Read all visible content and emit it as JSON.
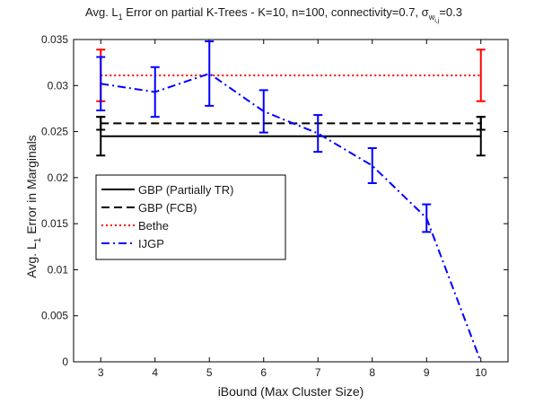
{
  "chart_data": {
    "type": "line",
    "title": "Avg. L",
    "title_sub": "1",
    "title_rest": " Error on partial K-Trees - K=10, n=100, connectivity=0.7, σ",
    "title_sigma_sub": "w",
    "title_sigma_subsub": "i,j",
    "title_tail": "=0.3",
    "xlabel": "iBound (Max Cluster Size)",
    "ylabel_pre": "Avg. L",
    "ylabel_sub": "1",
    "ylabel_post": " Error in Marginals",
    "xlim": [
      2.5,
      10.5
    ],
    "ylim": [
      0,
      0.035
    ],
    "xticks": [
      3,
      4,
      5,
      6,
      7,
      8,
      9,
      10
    ],
    "xtick_labels": [
      "3",
      "4",
      "5",
      "6",
      "7",
      "8",
      "9",
      "10"
    ],
    "yticks": [
      0,
      0.005,
      0.01,
      0.015,
      0.02,
      0.025,
      0.03,
      0.035
    ],
    "ytick_labels": [
      "0",
      "0.005",
      "0.01",
      "0.015",
      "0.02",
      "0.025",
      "0.03",
      "0.035"
    ],
    "grid": false,
    "legend_position": "left-middle",
    "series": [
      {
        "name": "GBP (Partially TR)",
        "color": "#000000",
        "style": "solid",
        "x": [
          3,
          10
        ],
        "y": [
          0.0245,
          0.0245
        ],
        "err": [
          0.0021,
          0.0021
        ]
      },
      {
        "name": "GBP (FCB)",
        "color": "#000000",
        "style": "dashed",
        "x": [
          3,
          10
        ],
        "y": [
          0.0259,
          0.0259
        ],
        "err": [
          0.0007,
          0.0007
        ]
      },
      {
        "name": "Bethe",
        "color": "#ff0000",
        "style": "dotted",
        "x": [
          3,
          10
        ],
        "y": [
          0.0311,
          0.0311
        ],
        "err": [
          0.0028,
          0.0028
        ]
      },
      {
        "name": "IJGP",
        "color": "#0000ff",
        "style": "dashdot",
        "x": [
          3,
          4,
          5,
          6,
          7,
          8,
          9,
          10
        ],
        "y": [
          0.0302,
          0.0293,
          0.0313,
          0.0272,
          0.0248,
          0.0213,
          0.0156,
          0.0
        ],
        "err": [
          0.0029,
          0.0027,
          0.0035,
          0.0023,
          0.002,
          0.0019,
          0.0015,
          0.0
        ]
      }
    ]
  }
}
